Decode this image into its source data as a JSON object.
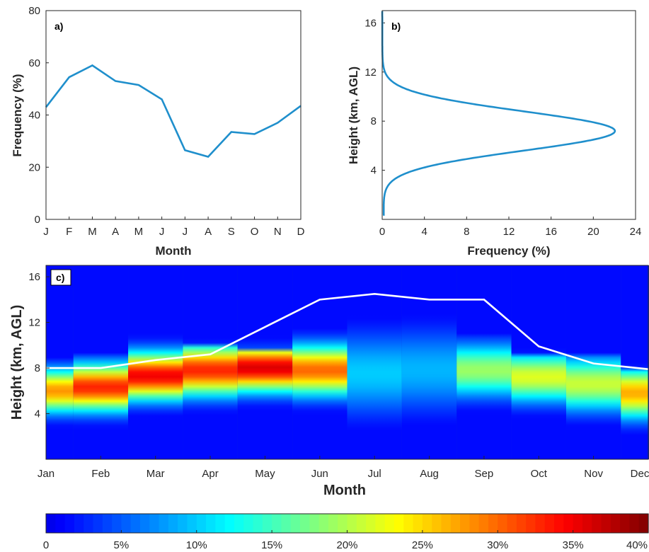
{
  "colors": {
    "line": "#1f8fcc",
    "overlay": "#ffffff",
    "axis": "#262626"
  },
  "chart_data": [
    {
      "type": "line",
      "panel_label": "a)",
      "title": "",
      "xlabel": "Month",
      "ylabel": "Frequency (%)",
      "categories": [
        "J",
        "F",
        "M",
        "A",
        "M",
        "J",
        "J",
        "A",
        "S",
        "O",
        "N",
        "D"
      ],
      "yticks": [
        "0",
        "20",
        "40",
        "60",
        "80"
      ],
      "ylim": [
        0,
        80
      ],
      "values": [
        43,
        54.5,
        59,
        53,
        51.5,
        46,
        26.5,
        24,
        33.5,
        32.7,
        37,
        43.5
      ],
      "grid": false
    },
    {
      "type": "line",
      "panel_label": "b)",
      "title": "",
      "xlabel": "Frequency (%)",
      "ylabel": "Height (km, AGL)",
      "xticks": [
        "0",
        "4",
        "8",
        "12",
        "16",
        "20",
        "24"
      ],
      "yticks": [
        "4",
        "8",
        "12",
        "16"
      ],
      "xlim": [
        0,
        24
      ],
      "ylim": [
        0,
        17
      ],
      "profile": {
        "peak_height_km": 7.2,
        "peak_frequency": 22,
        "sigma_below_km": 1.6,
        "sigma_above_km": 1.6
      },
      "grid": false
    },
    {
      "type": "heatmap",
      "panel_label": "c)",
      "title": "",
      "xlabel": "Month",
      "ylabel": "Height (km, AGL)",
      "xticks": [
        "Jan",
        "Feb",
        "Mar",
        "Apr",
        "May",
        "Jun",
        "Jul",
        "Aug",
        "Sep",
        "Oct",
        "Nov",
        "Dec"
      ],
      "yticks": [
        "4",
        "8",
        "12",
        "16"
      ],
      "ylim": [
        0,
        17
      ],
      "colorbar": {
        "ticks": [
          "0",
          "5%",
          "10%",
          "15%",
          "20%",
          "25%",
          "30%",
          "35%",
          "40%"
        ],
        "range": [
          0,
          40
        ]
      },
      "columns": [
        {
          "center_km": 6.0,
          "width_km": 1.3,
          "peak_pct": 28,
          "top_km": 8.5
        },
        {
          "center_km": 6.3,
          "width_km": 1.4,
          "peak_pct": 33,
          "top_km": 9.0
        },
        {
          "center_km": 7.3,
          "width_km": 1.4,
          "peak_pct": 35,
          "top_km": 11.0
        },
        {
          "center_km": 7.8,
          "width_km": 1.5,
          "peak_pct": 33,
          "top_km": 10.0
        },
        {
          "center_km": 8.0,
          "width_km": 1.4,
          "peak_pct": 36,
          "top_km": 9.5
        },
        {
          "center_km": 7.8,
          "width_km": 1.5,
          "peak_pct": 30,
          "top_km": 12.0
        },
        {
          "center_km": 7.5,
          "width_km": 2.5,
          "peak_pct": 10,
          "top_km": 13.0
        },
        {
          "center_km": 7.8,
          "width_km": 2.5,
          "peak_pct": 9,
          "top_km": 13.0
        },
        {
          "center_km": 7.8,
          "width_km": 1.6,
          "peak_pct": 19,
          "top_km": 11.0
        },
        {
          "center_km": 7.2,
          "width_km": 1.5,
          "peak_pct": 22,
          "top_km": 9.0
        },
        {
          "center_km": 6.6,
          "width_km": 1.6,
          "peak_pct": 21,
          "top_km": 9.0
        },
        {
          "center_km": 5.8,
          "width_km": 1.5,
          "peak_pct": 27,
          "top_km": 8.0
        }
      ],
      "overlay_line": {
        "x": [
          0,
          1,
          2,
          3,
          4,
          5,
          6,
          7,
          8,
          9,
          10,
          11
        ],
        "values": [
          8.0,
          8.0,
          8.7,
          9.2,
          11.6,
          14.0,
          14.5,
          14.0,
          14.0,
          9.9,
          8.4,
          7.9
        ]
      }
    }
  ]
}
